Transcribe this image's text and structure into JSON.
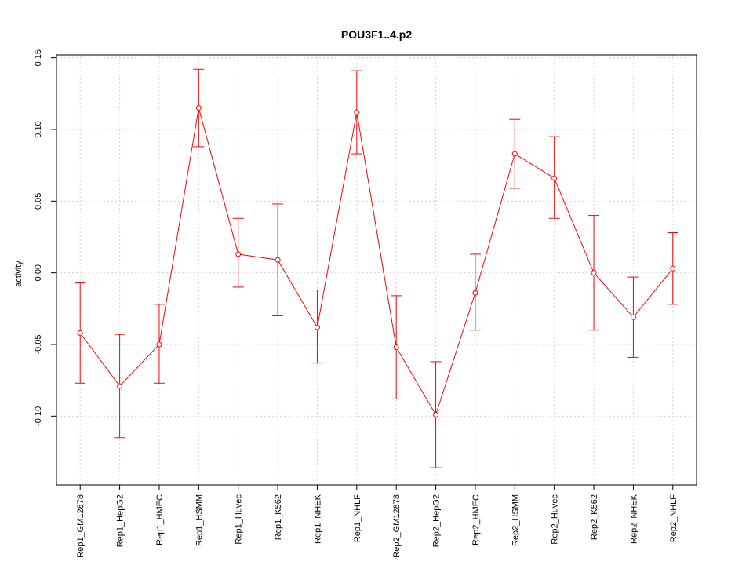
{
  "chart_data": {
    "type": "line",
    "title": "POU3F1..4.p2",
    "xlabel": "",
    "ylabel": "activity",
    "ylim": [
      -0.148,
      0.152
    ],
    "y_ticks": [
      -0.1,
      -0.05,
      0.0,
      0.05,
      0.1,
      0.15
    ],
    "y_tick_labels": [
      "-0.10",
      "-0.05",
      "0.00",
      "0.05",
      "0.10",
      "0.15"
    ],
    "grid": true,
    "categories": [
      "Rep1_GM12878",
      "Rep1_HepG2",
      "Rep1_HMEC",
      "Rep1_HSMM",
      "Rep1_Huvec",
      "Rep1_K562",
      "Rep1_NHEK",
      "Rep1_NHLF",
      "Rep2_GM12878",
      "Rep2_HepG2",
      "Rep2_HMEC",
      "Rep2_HSMM",
      "Rep2_Huvec",
      "Rep2_K562",
      "Rep2_NHEK",
      "Rep2_NHLF"
    ],
    "series": [
      {
        "color": "#ff0000",
        "values": [
          -0.042,
          -0.079,
          -0.05,
          0.115,
          0.013,
          0.009,
          -0.038,
          0.112,
          -0.052,
          -0.099,
          -0.014,
          0.083,
          0.066,
          0.0,
          -0.031,
          0.003
        ],
        "lower": [
          -0.077,
          -0.115,
          -0.077,
          0.088,
          -0.01,
          -0.03,
          -0.063,
          0.083,
          -0.088,
          -0.136,
          -0.04,
          0.059,
          0.038,
          -0.04,
          -0.059,
          -0.022
        ],
        "upper": [
          -0.007,
          -0.043,
          -0.022,
          0.142,
          0.038,
          0.048,
          -0.012,
          0.141,
          -0.016,
          -0.062,
          0.013,
          0.107,
          0.095,
          0.04,
          -0.003,
          0.028
        ]
      }
    ]
  }
}
